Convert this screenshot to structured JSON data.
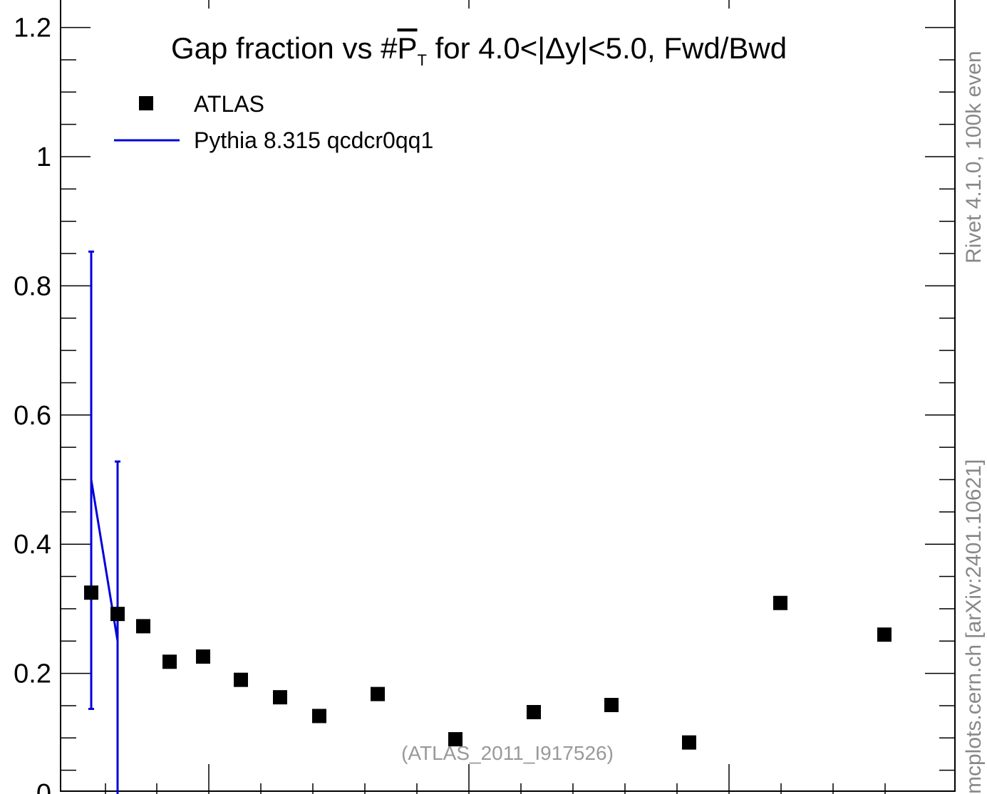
{
  "chart_data": {
    "type": "scatter",
    "title": "Gap fraction vs #P_T for 4.0<|Δy|<5.0, Fwd/Bwd",
    "title_parts": {
      "pre": "Gap fraction vs #",
      "sym": "P",
      "sub": "T",
      "post": " for 4.0<|Δy|<5.0, Fwd/Bwd"
    },
    "ylim": [
      0,
      1.25
    ],
    "y_ticks": [
      0.2,
      0.4,
      0.6,
      0.8,
      1,
      1.2
    ],
    "y_tick_labels": [
      "0.2",
      "0.4",
      "0.6",
      "0.8",
      "1",
      "1.2"
    ],
    "y_bottom_label": "0",
    "grid": false,
    "legend_position": "top-left",
    "legend": [
      {
        "label": "ATLAS",
        "marker": "square",
        "color": "#000000"
      },
      {
        "label": "Pythia 8.315 qcdcr0qq1",
        "marker": "line",
        "color": "#0000dd"
      }
    ],
    "series": [
      {
        "name": "ATLAS",
        "color": "#000000",
        "points": [
          {
            "x": 0.11,
            "y": 0.325
          },
          {
            "x": 0.21,
            "y": 0.292
          },
          {
            "x": 0.31,
            "y": 0.273
          },
          {
            "x": 0.41,
            "y": 0.218
          },
          {
            "x": 0.535,
            "y": 0.226
          },
          {
            "x": 0.685,
            "y": 0.19
          },
          {
            "x": 0.835,
            "y": 0.163
          },
          {
            "x": 0.985,
            "y": 0.134
          },
          {
            "x": 1.2,
            "y": 0.168
          },
          {
            "x": 1.5,
            "y": 0.098
          },
          {
            "x": 1.8,
            "y": 0.14
          },
          {
            "x": 2.1,
            "y": 0.151
          },
          {
            "x": 2.4,
            "y": 0.093
          },
          {
            "x": 2.8,
            "y": 0.309
          },
          {
            "x": 3.2,
            "y": 0.26
          }
        ]
      },
      {
        "name": "Pythia 8.315 qcdcr0qq1",
        "color": "#0000dd",
        "points": [
          {
            "x": 0.11,
            "y": 0.5,
            "err_low": 0.145,
            "err_high": 0.853
          },
          {
            "x": 0.21,
            "y": 0.25,
            "err_low": 0.0,
            "err_high": 0.528
          }
        ]
      }
    ],
    "annotation": "(ATLAS_2011_I917526)",
    "side_label": "mcplots.cern.ch [arXiv:2401.10621]",
    "side_label_top": "Rivet 4.1.0,  100k even"
  }
}
